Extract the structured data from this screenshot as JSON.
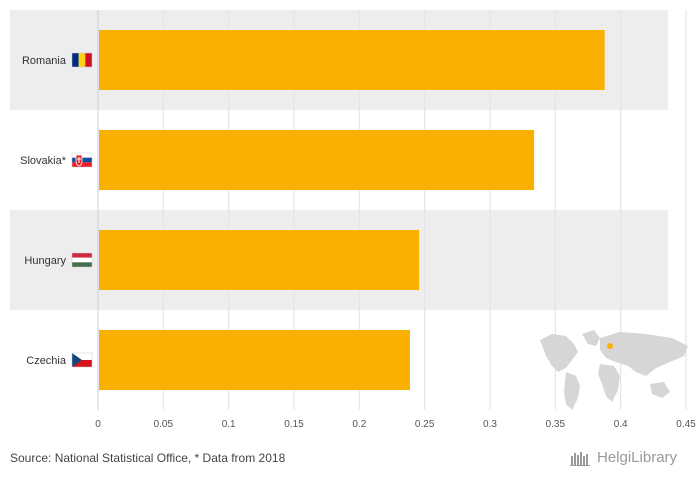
{
  "chart_data": {
    "type": "bar",
    "orientation": "horizontal",
    "categories": [
      "Romania",
      "Slovakia*",
      "Hungary",
      "Czechia"
    ],
    "values": [
      0.387,
      0.333,
      0.245,
      0.238
    ],
    "xlim": [
      0,
      0.45
    ],
    "x_ticks": [
      0,
      0.05,
      0.1,
      0.15,
      0.2,
      0.25,
      0.3,
      0.35,
      0.4,
      0.45
    ],
    "grid": true,
    "bar_color": "#f9b000",
    "band_color": "#ededed",
    "flag_icons": [
      "romania-flag-icon",
      "slovakia-flag-icon",
      "hungary-flag-icon",
      "czechia-flag-icon"
    ]
  },
  "footer": {
    "source": "Source: National Statistical Office, * Data from 2018",
    "brand": "HelgiLibrary"
  },
  "decor": {
    "map_icon": "world-map-icon"
  }
}
